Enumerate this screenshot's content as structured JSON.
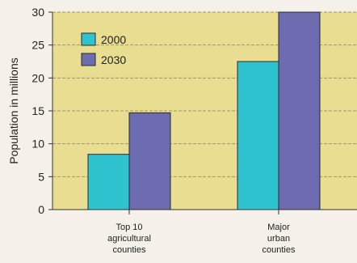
{
  "chart_data": {
    "type": "bar",
    "title": "",
    "xlabel": "",
    "ylabel": "Population in millions",
    "ylim": [
      0,
      30
    ],
    "yticks": [
      "0",
      "5",
      "10",
      "15",
      "20",
      "25",
      "30"
    ],
    "categories": [
      [
        "Top 10",
        "agricultural",
        "counties"
      ],
      [
        "Major",
        "urban",
        "counties"
      ]
    ],
    "series": [
      {
        "name": "2000",
        "values": [
          8.4,
          22.5
        ]
      },
      {
        "name": "2030",
        "values": [
          14.7,
          30
        ]
      }
    ],
    "grid": true,
    "legend_position": "top-left"
  },
  "colors": {
    "plot_background": "#e9dd91",
    "series_2000": "#2fc3d0",
    "series_2030": "#6d6cb1",
    "gridline": "#9c9562",
    "axis": "#333333"
  }
}
